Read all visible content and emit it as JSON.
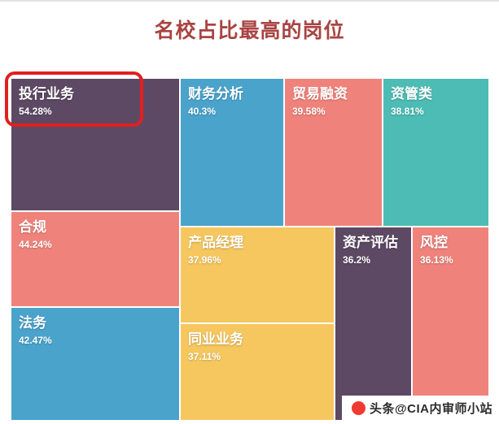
{
  "title": "名校占比最高的岗位",
  "colors": {
    "title": "#a84442",
    "highlight_box": "#e21f1f",
    "watermark_red": "#ee3a30",
    "purple": "#5d4964",
    "salmon": "#ef837b",
    "blue": "#4aa3cb",
    "teal": "#4cbcb4",
    "yellow": "#f6c75f"
  },
  "watermark": {
    "icon": "toutiao-logo-icon",
    "text": "头条@CIA内审师小站"
  },
  "chart_data": {
    "type": "treemap",
    "title": "名校占比最高的岗位",
    "unit": "percent",
    "items": [
      {
        "label": "投行业务",
        "value": 54.28,
        "value_text": "54.28%",
        "color": "#5d4964",
        "highlighted": true
      },
      {
        "label": "合规",
        "value": 44.24,
        "value_text": "44.24%",
        "color": "#ef837b",
        "highlighted": false
      },
      {
        "label": "法务",
        "value": 42.47,
        "value_text": "42.47%",
        "color": "#4aa3cb",
        "highlighted": false
      },
      {
        "label": "财务分析",
        "value": 40.3,
        "value_text": "40.3%",
        "color": "#4aa3cb",
        "highlighted": false
      },
      {
        "label": "贸易融资",
        "value": 39.58,
        "value_text": "39.58%",
        "color": "#ef837b",
        "highlighted": false
      },
      {
        "label": "资管类",
        "value": 38.81,
        "value_text": "38.81%",
        "color": "#4cbcb4",
        "highlighted": false
      },
      {
        "label": "产品经理",
        "value": 37.96,
        "value_text": "37.96%",
        "color": "#f6c75f",
        "highlighted": false
      },
      {
        "label": "同业业务",
        "value": 37.11,
        "value_text": "37.11%",
        "color": "#f6c75f",
        "highlighted": false
      },
      {
        "label": "资产评估",
        "value": 36.2,
        "value_text": "36.2%",
        "color": "#5d4964",
        "highlighted": false
      },
      {
        "label": "风控",
        "value": 36.13,
        "value_text": "36.13%",
        "color": "#ef837b",
        "highlighted": false
      }
    ],
    "annotation": {
      "type": "highlight-box",
      "target": "投行业务",
      "color": "#e21f1f"
    }
  }
}
